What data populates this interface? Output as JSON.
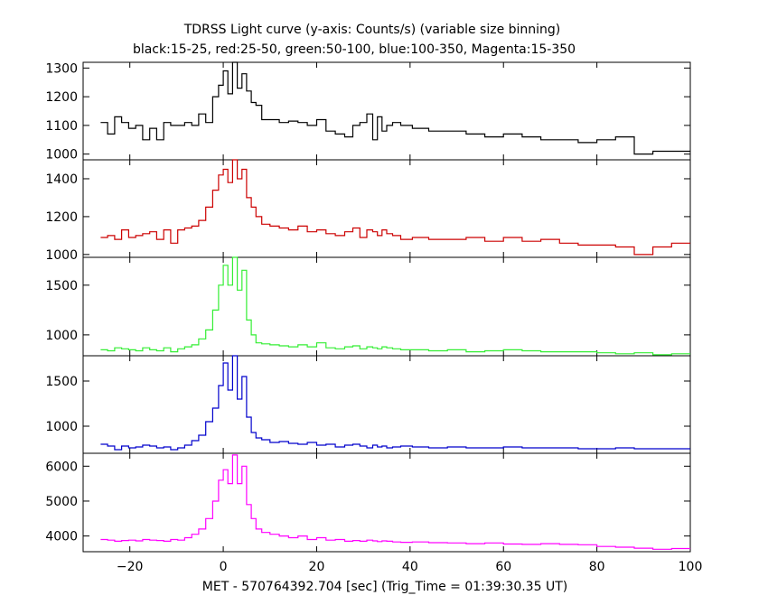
{
  "chart_data": {
    "type": "line",
    "title": "TDRSS Light curve (y-axis: Counts/s) (variable size binning)",
    "subtitle": "black:15-25, red:25-50, green:50-100, blue:100-350, Magenta:15-350",
    "xlabel": "MET - 570764392.704 [sec] (Trig_Time = 01:39:30.35 UT)",
    "xlim": [
      -30,
      100
    ],
    "x_ticks": [
      -20,
      0,
      20,
      40,
      60,
      80,
      100
    ],
    "x_tick_labels": [
      "−20",
      "0",
      "20",
      "40",
      "60",
      "80",
      "100"
    ],
    "panels": [
      {
        "band": "15-25",
        "color": "#000000",
        "ylim": [
          980,
          1320
        ],
        "y_ticks": [
          1000,
          1100,
          1200,
          1300
        ],
        "y_tick_labels": [
          "1000",
          "1100",
          "1200",
          "1300"
        ],
        "x": [
          -25.5,
          -24,
          -22.5,
          -21,
          -19.5,
          -18,
          -16.5,
          -15,
          -13.5,
          -12,
          -10.5,
          -9,
          -7.5,
          -6,
          -4.5,
          -3,
          -1.5,
          -0.5,
          0.5,
          1.5,
          2.5,
          3.5,
          4.5,
          5.5,
          6.5,
          7.5,
          9,
          11,
          13,
          15,
          17,
          19,
          21,
          23,
          25,
          27,
          28.5,
          30,
          31.5,
          32.5,
          33.5,
          34.5,
          35.5,
          37,
          39,
          42,
          46,
          50,
          54,
          58,
          62,
          66,
          70,
          74,
          78,
          82,
          86,
          90,
          94,
          98
        ],
        "values": [
          1110,
          1070,
          1130,
          1110,
          1090,
          1100,
          1050,
          1090,
          1050,
          1110,
          1100,
          1100,
          1110,
          1100,
          1140,
          1110,
          1200,
          1240,
          1290,
          1210,
          1320,
          1230,
          1280,
          1220,
          1180,
          1170,
          1120,
          1120,
          1110,
          1115,
          1110,
          1100,
          1120,
          1080,
          1070,
          1060,
          1100,
          1110,
          1140,
          1050,
          1130,
          1080,
          1100,
          1110,
          1100,
          1090,
          1080,
          1080,
          1070,
          1060,
          1070,
          1060,
          1050,
          1050,
          1040,
          1050,
          1060,
          1000,
          1010,
          1010
        ]
      },
      {
        "band": "25-50",
        "color": "#cc0000",
        "ylim": [
          985,
          1500
        ],
        "y_ticks": [
          1000,
          1200,
          1400
        ],
        "y_tick_labels": [
          "1000",
          "1200",
          "1400"
        ],
        "x": [
          -25.5,
          -24,
          -22.5,
          -21,
          -19.5,
          -18,
          -16.5,
          -15,
          -13.5,
          -12,
          -10.5,
          -9,
          -7.5,
          -6,
          -4.5,
          -3,
          -1.5,
          -0.5,
          0.5,
          1.5,
          2.5,
          3.5,
          4.5,
          5.5,
          6.5,
          7.5,
          9,
          11,
          13,
          15,
          17,
          19,
          21,
          23,
          25,
          27,
          28.5,
          30,
          31.5,
          32.5,
          33.5,
          34.5,
          35.5,
          37,
          39,
          42,
          46,
          50,
          54,
          58,
          62,
          66,
          70,
          74,
          78,
          82,
          86,
          90,
          94,
          98
        ],
        "values": [
          1090,
          1100,
          1080,
          1130,
          1090,
          1100,
          1110,
          1120,
          1080,
          1130,
          1060,
          1130,
          1140,
          1150,
          1180,
          1250,
          1340,
          1420,
          1450,
          1380,
          1500,
          1400,
          1450,
          1300,
          1250,
          1200,
          1160,
          1150,
          1140,
          1130,
          1150,
          1120,
          1130,
          1110,
          1100,
          1120,
          1140,
          1090,
          1130,
          1120,
          1100,
          1130,
          1110,
          1100,
          1080,
          1090,
          1080,
          1080,
          1090,
          1070,
          1090,
          1070,
          1080,
          1060,
          1050,
          1050,
          1040,
          1000,
          1040,
          1060
        ]
      },
      {
        "band": "50-100",
        "color": "#33ee33",
        "ylim": [
          790,
          1780
        ],
        "y_ticks": [
          1000,
          1500
        ],
        "y_tick_labels": [
          "1000",
          "1500"
        ],
        "x": [
          -25.5,
          -24,
          -22.5,
          -21,
          -19.5,
          -18,
          -16.5,
          -15,
          -13.5,
          -12,
          -10.5,
          -9,
          -7.5,
          -6,
          -4.5,
          -3,
          -1.5,
          -0.5,
          0.5,
          1.5,
          2.5,
          3.5,
          4.5,
          5.5,
          6.5,
          7.5,
          9,
          11,
          13,
          15,
          17,
          19,
          21,
          23,
          25,
          27,
          28.5,
          30,
          31.5,
          32.5,
          33.5,
          34.5,
          35.5,
          37,
          39,
          42,
          46,
          50,
          54,
          58,
          62,
          66,
          70,
          74,
          78,
          82,
          86,
          90,
          94,
          98
        ],
        "values": [
          850,
          840,
          870,
          860,
          850,
          840,
          870,
          850,
          840,
          870,
          830,
          860,
          880,
          900,
          960,
          1050,
          1250,
          1500,
          1700,
          1500,
          1780,
          1450,
          1650,
          1150,
          1000,
          920,
          910,
          900,
          890,
          880,
          900,
          880,
          920,
          870,
          860,
          880,
          890,
          860,
          880,
          870,
          860,
          880,
          870,
          860,
          850,
          850,
          840,
          850,
          830,
          840,
          850,
          840,
          830,
          830,
          830,
          820,
          810,
          820,
          800,
          810
        ]
      },
      {
        "band": "100-350",
        "color": "#0000cc",
        "ylim": [
          700,
          1780
        ],
        "y_ticks": [
          1000,
          1500
        ],
        "y_tick_labels": [
          "1000",
          "1500"
        ],
        "x": [
          -25.5,
          -24,
          -22.5,
          -21,
          -19.5,
          -18,
          -16.5,
          -15,
          -13.5,
          -12,
          -10.5,
          -9,
          -7.5,
          -6,
          -4.5,
          -3,
          -1.5,
          -0.5,
          0.5,
          1.5,
          2.5,
          3.5,
          4.5,
          5.5,
          6.5,
          7.5,
          9,
          11,
          13,
          15,
          17,
          19,
          21,
          23,
          25,
          27,
          28.5,
          30,
          31.5,
          32.5,
          33.5,
          34.5,
          35.5,
          37,
          39,
          42,
          46,
          50,
          54,
          58,
          62,
          66,
          70,
          74,
          78,
          82,
          86,
          90,
          94,
          98
        ],
        "values": [
          800,
          780,
          740,
          780,
          760,
          770,
          790,
          780,
          760,
          770,
          740,
          760,
          790,
          840,
          900,
          1050,
          1200,
          1450,
          1700,
          1400,
          1780,
          1300,
          1550,
          1100,
          930,
          870,
          850,
          820,
          830,
          810,
          800,
          820,
          790,
          800,
          770,
          790,
          800,
          780,
          760,
          790,
          770,
          780,
          760,
          770,
          780,
          770,
          760,
          770,
          760,
          760,
          770,
          760,
          760,
          760,
          750,
          750,
          760,
          750,
          750,
          750
        ]
      },
      {
        "band": "15-350",
        "color": "#ff00ff",
        "ylim": [
          3550,
          6370
        ],
        "y_ticks": [
          4000,
          5000,
          6000
        ],
        "y_tick_labels": [
          "4000",
          "5000",
          "6000"
        ],
        "x": [
          -25.5,
          -24,
          -22.5,
          -21,
          -19.5,
          -18,
          -16.5,
          -15,
          -13.5,
          -12,
          -10.5,
          -9,
          -7.5,
          -6,
          -4.5,
          -3,
          -1.5,
          -0.5,
          0.5,
          1.5,
          2.5,
          3.5,
          4.5,
          5.5,
          6.5,
          7.5,
          9,
          11,
          13,
          15,
          17,
          19,
          21,
          23,
          25,
          27,
          28.5,
          30,
          31.5,
          32.5,
          33.5,
          34.5,
          35.5,
          37,
          39,
          42,
          46,
          50,
          54,
          58,
          62,
          66,
          70,
          74,
          78,
          82,
          86,
          90,
          94,
          98
        ],
        "values": [
          3900,
          3880,
          3850,
          3870,
          3880,
          3860,
          3900,
          3880,
          3870,
          3850,
          3900,
          3880,
          3950,
          4050,
          4200,
          4500,
          5000,
          5600,
          5900,
          5500,
          6320,
          5500,
          6000,
          4900,
          4500,
          4200,
          4100,
          4050,
          4000,
          3950,
          4000,
          3900,
          3950,
          3880,
          3900,
          3850,
          3870,
          3850,
          3880,
          3860,
          3840,
          3860,
          3850,
          3830,
          3820,
          3830,
          3810,
          3800,
          3780,
          3800,
          3770,
          3760,
          3780,
          3760,
          3750,
          3700,
          3680,
          3650,
          3620,
          3640
        ]
      }
    ]
  }
}
